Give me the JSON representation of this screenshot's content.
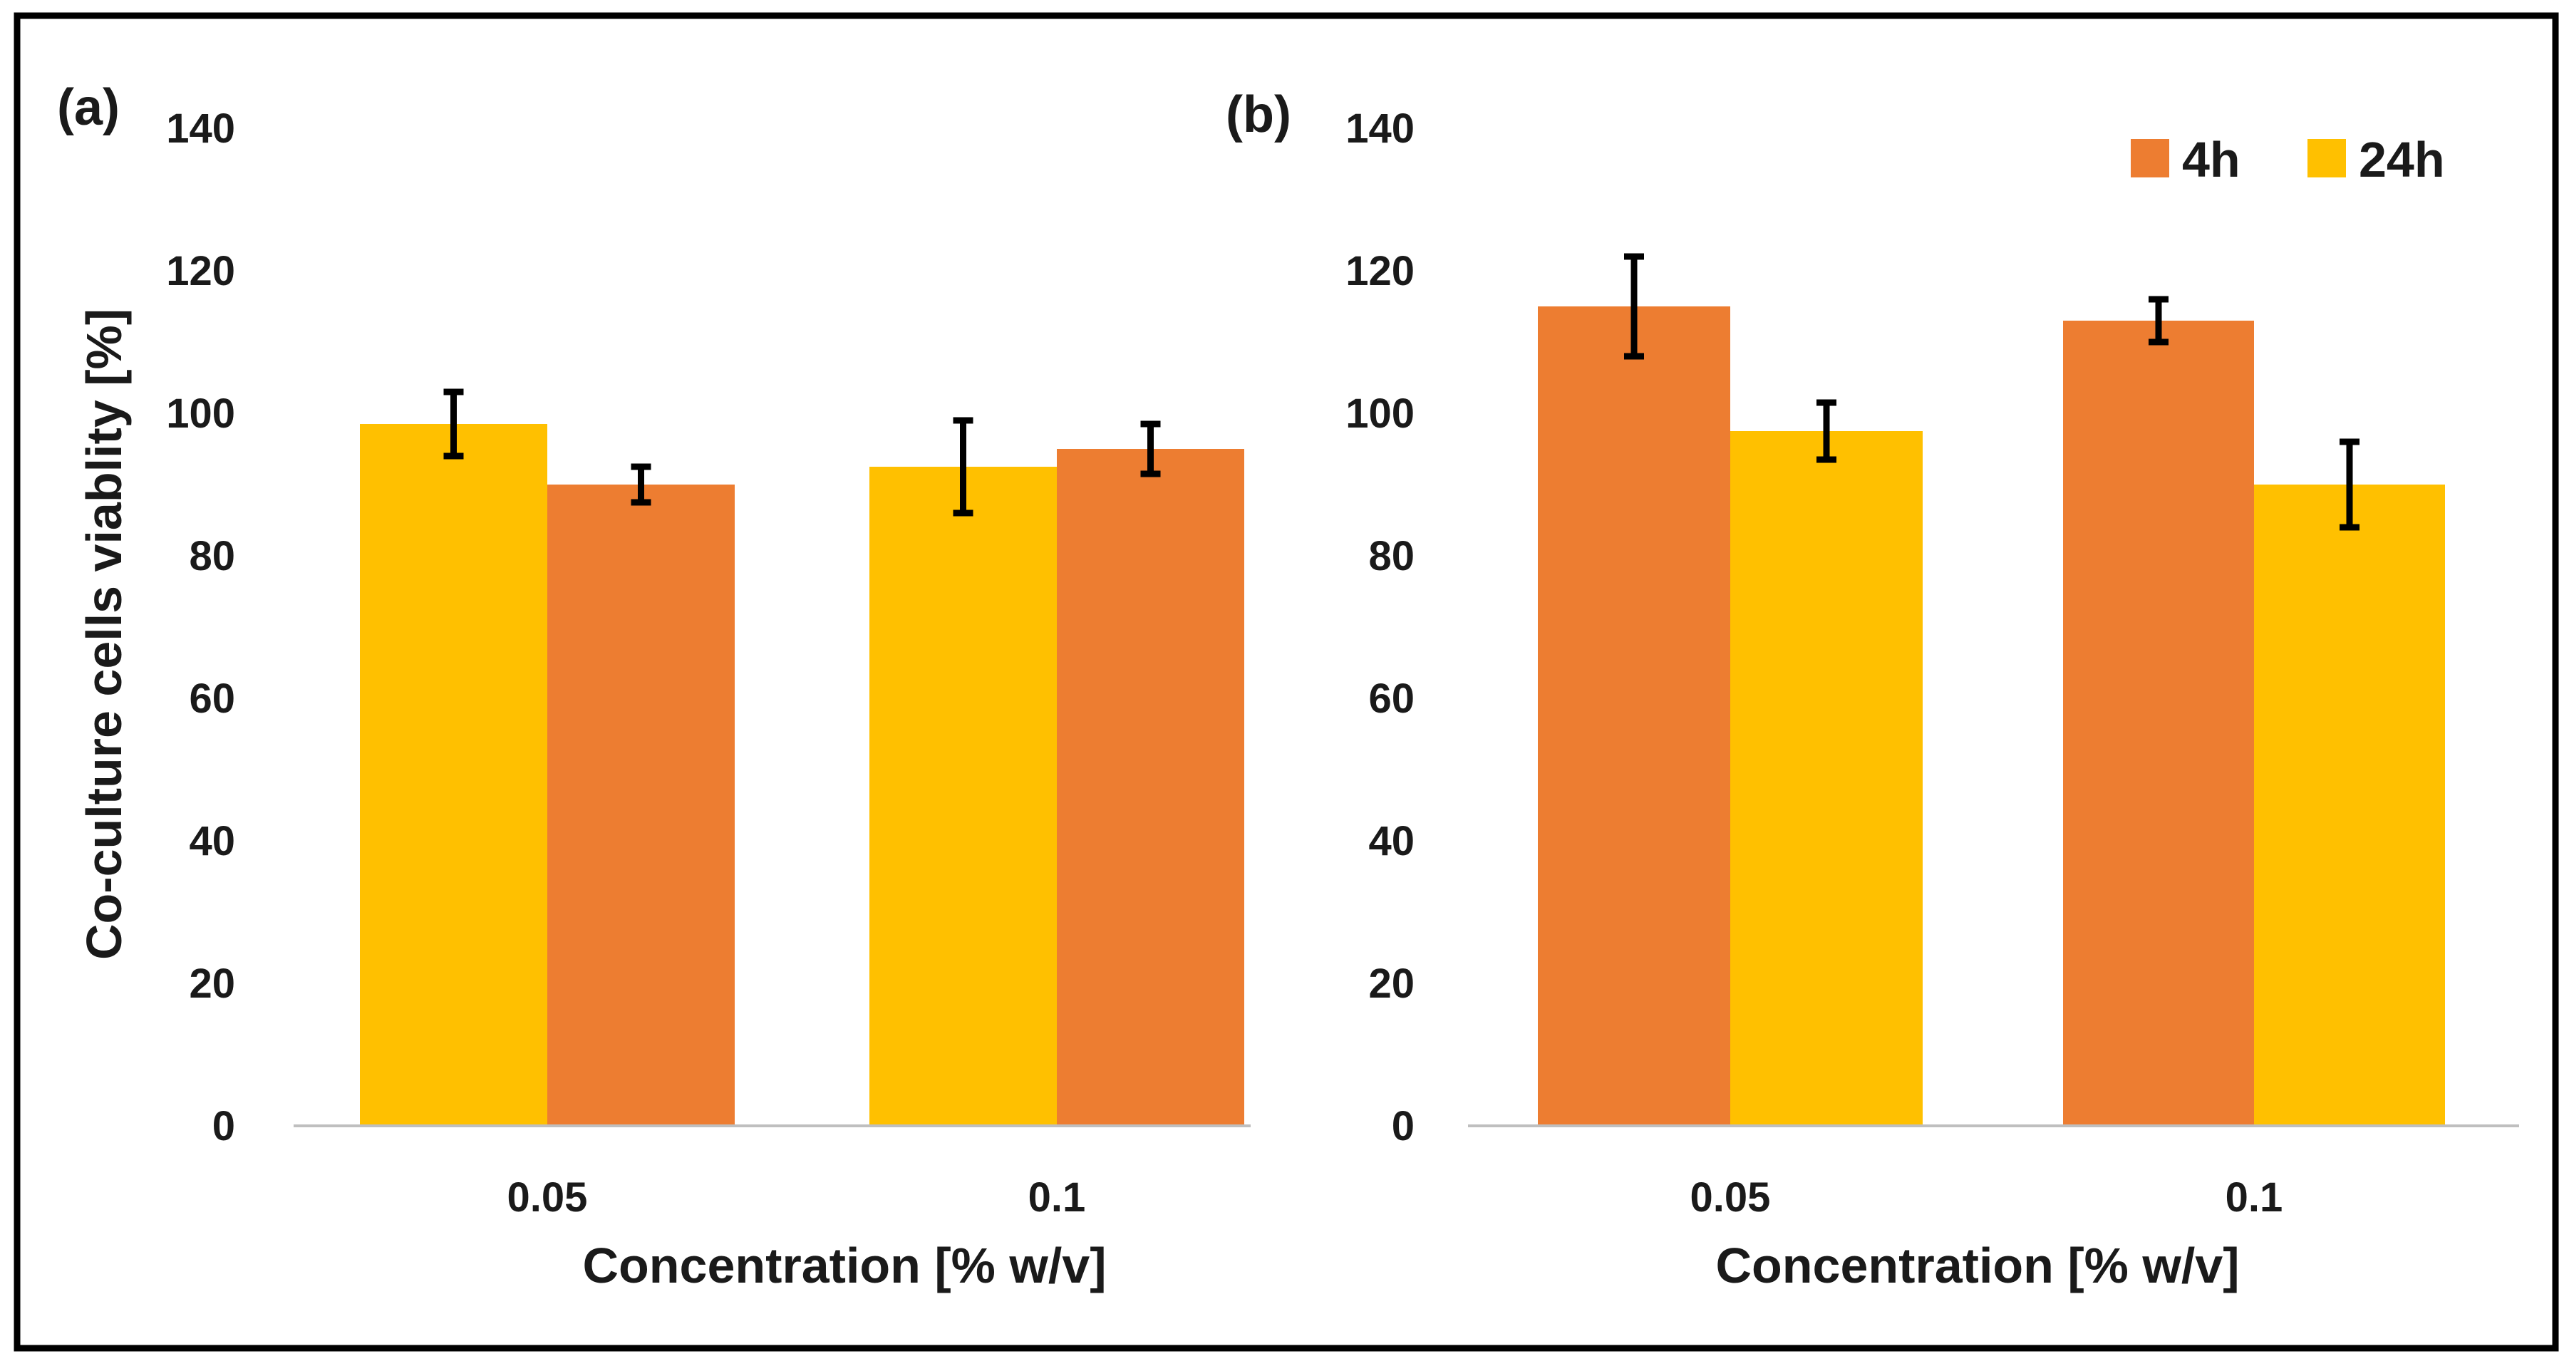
{
  "colors": {
    "h4": "#ED7D31",
    "h24": "#FFC000",
    "err": "#000000",
    "axis": "#bfbfbf",
    "frame": "#000000"
  },
  "legend": {
    "position": "top-right",
    "entries": [
      "4h",
      "24h"
    ]
  },
  "chart_data": [
    {
      "type": "bar",
      "panel_label": "(a)",
      "categories": [
        "0.05",
        "0.1"
      ],
      "series": [
        {
          "name": "24h",
          "color": "#FFC000",
          "values": [
            98.5,
            92.5
          ],
          "errors": [
            4.5,
            6.5
          ]
        },
        {
          "name": "4h",
          "color": "#ED7D31",
          "values": [
            90,
            95
          ],
          "errors": [
            2.5,
            3.5
          ]
        }
      ],
      "xlabel": "Concentration  [% w/v]",
      "ylabel": "Co-culture  cells viablity [%]",
      "yticks": [
        "0",
        "20",
        "40",
        "60",
        "80",
        "100",
        "120",
        "140"
      ],
      "ylim": [
        0,
        140
      ],
      "grid": false
    },
    {
      "type": "bar",
      "panel_label": "(b)",
      "categories": [
        "0.05",
        "0.1"
      ],
      "series": [
        {
          "name": "4h",
          "color": "#ED7D31",
          "values": [
            115,
            113
          ],
          "errors": [
            7,
            3
          ]
        },
        {
          "name": "24h",
          "color": "#FFC000",
          "values": [
            97.5,
            90
          ],
          "errors": [
            4,
            6
          ]
        }
      ],
      "xlabel": "Concentration  [% w/v]",
      "ylabel": "",
      "yticks": [
        "0",
        "20",
        "40",
        "60",
        "80",
        "100",
        "120",
        "140"
      ],
      "ylim": [
        0,
        140
      ],
      "grid": false
    }
  ]
}
